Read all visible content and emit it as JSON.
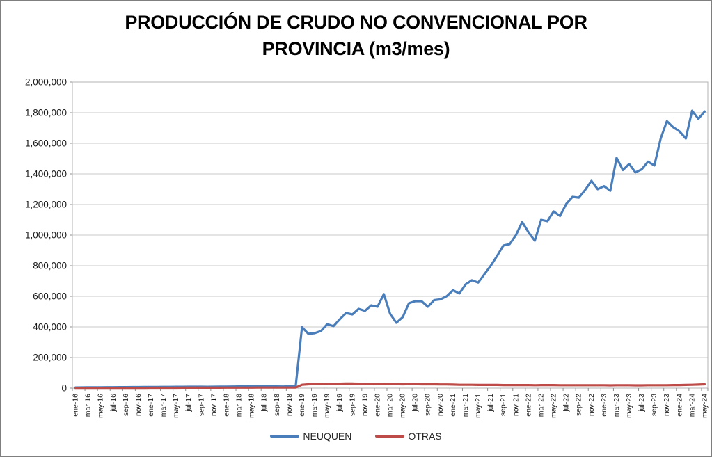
{
  "chart_data": {
    "type": "line",
    "title": "PRODUCCIÓN DE CRUDO NO CONVENCIONAL POR PROVINCIA (m3/mes)",
    "title_lines": [
      "PRODUCCIÓN DE CRUDO NO CONVENCIONAL POR",
      "PROVINCIA (m3/mes)"
    ],
    "xlabel": "",
    "ylabel": "",
    "ylim": [
      0,
      2000000
    ],
    "y_tick_step": 200000,
    "y_tick_labels": [
      "0",
      "200,000",
      "400,000",
      "600,000",
      "800,000",
      "1,000,000",
      "1,200,000",
      "1,400,000",
      "1,600,000",
      "1,800,000",
      "2,000,000"
    ],
    "x_label_interval": 2,
    "grid": true,
    "legend_position": "bottom",
    "colors": {
      "gridline": "#c9c9c9",
      "plot_border": "#b3b3b3",
      "tick": "#8c8c8c",
      "axis_text": "#1a1a1a",
      "title_text": "#000000"
    },
    "categories": [
      "ene-16",
      "feb-16",
      "mar-16",
      "abr-16",
      "may-16",
      "jun-16",
      "jul-16",
      "ago-16",
      "sep-16",
      "oct-16",
      "nov-16",
      "dic-16",
      "ene-17",
      "feb-17",
      "mar-17",
      "abr-17",
      "may-17",
      "jun-17",
      "jul-17",
      "ago-17",
      "sep-17",
      "oct-17",
      "nov-17",
      "dic-17",
      "ene-18",
      "feb-18",
      "mar-18",
      "abr-18",
      "may-18",
      "jun-18",
      "jul-18",
      "ago-18",
      "sep-18",
      "oct-18",
      "nov-18",
      "dic-18",
      "ene-19",
      "feb-19",
      "mar-19",
      "abr-19",
      "may-19",
      "jun-19",
      "jul-19",
      "ago-19",
      "sep-19",
      "oct-19",
      "nov-19",
      "dic-19",
      "ene-20",
      "feb-20",
      "mar-20",
      "abr-20",
      "may-20",
      "jun-20",
      "jul-20",
      "ago-20",
      "sep-20",
      "oct-20",
      "nov-20",
      "dic-20",
      "ene-21",
      "feb-21",
      "mar-21",
      "abr-21",
      "may-21",
      "jun-21",
      "jul-21",
      "ago-21",
      "sep-21",
      "oct-21",
      "nov-21",
      "dic-21",
      "ene-22",
      "feb-22",
      "mar-22",
      "abr-22",
      "may-22",
      "jun-22",
      "jul-22",
      "ago-22",
      "sep-22",
      "oct-22",
      "nov-22",
      "dic-22",
      "ene-23",
      "feb-23",
      "mar-23",
      "abr-23",
      "may-23",
      "jun-23",
      "jul-23",
      "ago-23",
      "sep-23",
      "oct-23",
      "nov-23",
      "dic-23",
      "ene-24",
      "feb-24",
      "mar-24",
      "abr-24",
      "may-24"
    ],
    "series": [
      {
        "name": "NEUQUEN",
        "color": "#4a7ebb",
        "values": [
          4000,
          4500,
          5000,
          5200,
          5500,
          5800,
          6000,
          6200,
          6500,
          6800,
          7000,
          7200,
          7500,
          7800,
          8000,
          8200,
          8500,
          8800,
          9000,
          9200,
          9000,
          8800,
          9000,
          9500,
          10000,
          10500,
          11000,
          12000,
          13500,
          14000,
          13000,
          12000,
          11000,
          10500,
          12000,
          15000,
          398000,
          355000,
          359000,
          373000,
          418000,
          405000,
          450000,
          491000,
          482000,
          518000,
          505000,
          541000,
          532000,
          614000,
          486000,
          427000,
          464000,
          555000,
          568000,
          568000,
          532000,
          575000,
          580000,
          601000,
          640000,
          618000,
          678000,
          705000,
          690000,
          745000,
          800000,
          864000,
          932000,
          941000,
          1000000,
          1086000,
          1018000,
          963000,
          1100000,
          1091000,
          1155000,
          1125000,
          1204000,
          1250000,
          1245000,
          1295000,
          1355000,
          1300000,
          1320000,
          1290000,
          1505000,
          1425000,
          1465000,
          1410000,
          1430000,
          1480000,
          1455000,
          1630000,
          1745000,
          1705000,
          1678000,
          1632000,
          1813000,
          1760000,
          1808000
        ]
      },
      {
        "name": "OTRAS",
        "color": "#be4b48",
        "values": [
          1500,
          1500,
          1600,
          1600,
          1700,
          1700,
          1800,
          1800,
          1900,
          1900,
          2000,
          2000,
          2200,
          2300,
          2400,
          2500,
          2500,
          2600,
          2600,
          2700,
          2700,
          2800,
          2800,
          2900,
          3000,
          3100,
          3200,
          3300,
          3400,
          3500,
          3500,
          3600,
          3600,
          3700,
          3800,
          4000,
          22000,
          25000,
          26000,
          27000,
          28000,
          28000,
          29000,
          30000,
          30000,
          29000,
          28000,
          28000,
          28000,
          29000,
          28000,
          26000,
          25000,
          26000,
          26000,
          25000,
          25000,
          25000,
          24000,
          24000,
          23000,
          22000,
          22000,
          22000,
          21000,
          21000,
          21000,
          21000,
          20000,
          20000,
          20000,
          20000,
          20000,
          19000,
          20000,
          20000,
          20000,
          19000,
          19000,
          19000,
          19000,
          19000,
          19000,
          19000,
          19000,
          18000,
          19000,
          19000,
          19000,
          18000,
          18000,
          19000,
          19000,
          19000,
          19000,
          20000,
          20000,
          21000,
          22000,
          23000,
          25000
        ]
      }
    ]
  }
}
